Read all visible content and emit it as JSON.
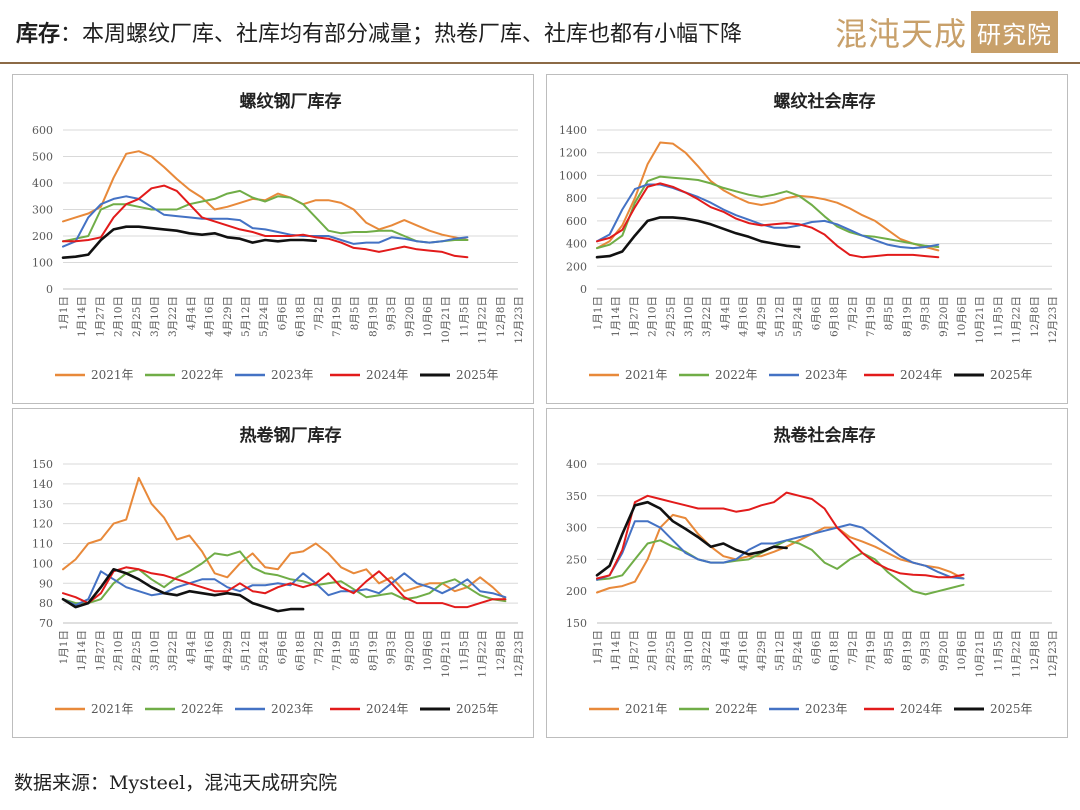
{
  "header": {
    "title_bold": "库存",
    "title_rest": "：本周螺纹厂库、社库均有部分减量；热卷厂库、社库也都有小幅下降",
    "logo_text": "混沌天成",
    "logo_box_text": "研究院"
  },
  "source": "数据来源：Mysteel，混沌天成研究院",
  "colors": {
    "2021年": "#e8893a",
    "2022年": "#70ad47",
    "2023年": "#4472c4",
    "2024年": "#e21b1b",
    "2025年": "#111111",
    "accent": "#8c6a46"
  },
  "chart_data": [
    {
      "type": "line",
      "title": "螺纹钢厂库存",
      "ylim": [
        0,
        600
      ],
      "yticks": [
        0,
        100,
        200,
        300,
        400,
        500,
        600
      ],
      "xticks": [
        "1月1日",
        "1月14日",
        "1月27日",
        "2月10日",
        "2月25日",
        "3月10日",
        "3月22日",
        "4月4日",
        "4月16日",
        "4月29日",
        "5月12日",
        "5月24日",
        "6月6日",
        "6月18日",
        "7月2日",
        "7月19日",
        "8月5日",
        "8月19日",
        "9月3日",
        "9月20日",
        "10月6日",
        "10月21日",
        "11月5日",
        "11月22日",
        "12月8日",
        "12月23日"
      ],
      "legend": "bottom",
      "series": [
        {
          "name": "2021年",
          "values": [
            255,
            270,
            285,
            310,
            420,
            510,
            520,
            500,
            460,
            415,
            375,
            345,
            300,
            310,
            325,
            340,
            335,
            360,
            345,
            320,
            335,
            335,
            325,
            300,
            250,
            225,
            240,
            260,
            240,
            220,
            205,
            195,
            185
          ]
        },
        {
          "name": "2022年",
          "values": [
            180,
            190,
            200,
            300,
            320,
            320,
            310,
            300,
            300,
            300,
            320,
            330,
            340,
            360,
            370,
            345,
            330,
            350,
            345,
            320,
            270,
            220,
            210,
            215,
            215,
            220,
            220,
            200,
            180,
            175,
            180,
            185,
            185
          ]
        },
        {
          "name": "2023年",
          "values": [
            160,
            180,
            270,
            320,
            340,
            350,
            340,
            310,
            280,
            275,
            270,
            265,
            265,
            265,
            260,
            230,
            225,
            215,
            205,
            200,
            200,
            200,
            185,
            170,
            175,
            175,
            195,
            190,
            180,
            175,
            180,
            190,
            195
          ]
        },
        {
          "name": "2024年",
          "values": [
            180,
            180,
            185,
            195,
            270,
            320,
            340,
            380,
            390,
            370,
            320,
            270,
            255,
            240,
            225,
            215,
            200,
            200,
            200,
            205,
            195,
            190,
            175,
            155,
            150,
            140,
            150,
            160,
            150,
            145,
            140,
            125,
            120
          ]
        },
        {
          "name": "2025年",
          "values": [
            118,
            122,
            130,
            185,
            225,
            235,
            235,
            230,
            225,
            220,
            210,
            205,
            210,
            195,
            190,
            175,
            185,
            180,
            185,
            185,
            182
          ]
        }
      ]
    },
    {
      "type": "line",
      "title": "螺纹社会库存",
      "ylim": [
        0,
        1400
      ],
      "yticks": [
        0,
        200,
        400,
        600,
        800,
        1000,
        1200,
        1400
      ],
      "xticks": [
        "1月1日",
        "1月14日",
        "1月27日",
        "2月10日",
        "2月25日",
        "3月10日",
        "3月22日",
        "4月4日",
        "4月16日",
        "4月29日",
        "5月12日",
        "5月24日",
        "6月6日",
        "6月18日",
        "7月2日",
        "7月19日",
        "8月5日",
        "8月19日",
        "9月3日",
        "9月20日",
        "10月6日",
        "10月21日",
        "11月5日",
        "11月22日",
        "12月8日",
        "12月23日"
      ],
      "legend": "bottom",
      "series": [
        {
          "name": "2021年",
          "values": [
            360,
            420,
            560,
            800,
            1100,
            1290,
            1280,
            1200,
            1080,
            950,
            870,
            810,
            760,
            740,
            760,
            800,
            820,
            810,
            790,
            760,
            710,
            650,
            600,
            520,
            440,
            400,
            370,
            340
          ]
        },
        {
          "name": "2022年",
          "values": [
            360,
            390,
            470,
            760,
            950,
            990,
            980,
            970,
            960,
            930,
            890,
            860,
            830,
            810,
            830,
            860,
            820,
            740,
            640,
            550,
            500,
            470,
            460,
            440,
            420,
            400,
            380,
            370
          ]
        },
        {
          "name": "2023年",
          "values": [
            420,
            480,
            700,
            880,
            920,
            920,
            890,
            850,
            810,
            760,
            700,
            650,
            610,
            570,
            540,
            540,
            560,
            590,
            600,
            570,
            520,
            470,
            430,
            390,
            370,
            360,
            370,
            390
          ]
        },
        {
          "name": "2024年",
          "values": [
            420,
            450,
            520,
            720,
            900,
            930,
            900,
            850,
            790,
            720,
            680,
            620,
            580,
            560,
            570,
            580,
            570,
            540,
            480,
            380,
            300,
            280,
            290,
            300,
            300,
            300,
            290,
            280
          ]
        },
        {
          "name": "2025年",
          "values": [
            280,
            290,
            330,
            470,
            600,
            630,
            630,
            620,
            600,
            570,
            530,
            490,
            460,
            420,
            400,
            380,
            370
          ]
        }
      ]
    },
    {
      "type": "line",
      "title": "热卷钢厂库存",
      "ylim": [
        70,
        150
      ],
      "yticks": [
        70,
        80,
        90,
        100,
        110,
        120,
        130,
        140,
        150
      ],
      "xticks": [
        "1月1日",
        "1月14日",
        "1月27日",
        "2月10日",
        "2月25日",
        "3月10日",
        "3月22日",
        "4月4日",
        "4月16日",
        "4月29日",
        "5月12日",
        "5月24日",
        "6月6日",
        "6月18日",
        "7月2日",
        "7月19日",
        "8月5日",
        "8月19日",
        "9月3日",
        "9月20日",
        "10月6日",
        "10月21日",
        "11月5日",
        "11月22日",
        "12月8日",
        "12月23日"
      ],
      "legend": "bottom",
      "series": [
        {
          "name": "2021年",
          "values": [
            97,
            102,
            110,
            112,
            120,
            122,
            143,
            130,
            123,
            112,
            114,
            106,
            95,
            93,
            100,
            105,
            98,
            97,
            105,
            106,
            110,
            105,
            98,
            95,
            97,
            90,
            93,
            86,
            88,
            90,
            90,
            86,
            88,
            93,
            88,
            82
          ]
        },
        {
          "name": "2022年",
          "values": [
            82,
            80,
            80,
            82,
            90,
            95,
            97,
            92,
            88,
            93,
            96,
            100,
            105,
            104,
            106,
            98,
            95,
            94,
            92,
            91,
            89,
            90,
            91,
            87,
            83,
            84,
            85,
            82,
            83,
            85,
            90,
            92,
            88,
            84,
            82,
            81
          ]
        },
        {
          "name": "2023年",
          "values": [
            82,
            79,
            82,
            96,
            92,
            88,
            86,
            84,
            85,
            88,
            90,
            92,
            92,
            88,
            86,
            89,
            89,
            90,
            89,
            95,
            90,
            84,
            86,
            86,
            87,
            85,
            90,
            95,
            90,
            88,
            85,
            88,
            92,
            86,
            85,
            83
          ]
        },
        {
          "name": "2024年",
          "values": [
            85,
            83,
            80,
            85,
            96,
            98,
            97,
            95,
            94,
            92,
            90,
            88,
            86,
            86,
            90,
            86,
            85,
            88,
            90,
            88,
            90,
            95,
            88,
            85,
            91,
            96,
            90,
            83,
            80,
            80,
            80,
            78,
            78,
            80,
            82,
            82
          ]
        },
        {
          "name": "2025年",
          "values": [
            82,
            78,
            80,
            88,
            97,
            95,
            92,
            88,
            85,
            84,
            86,
            85,
            84,
            85,
            84,
            80,
            78,
            76,
            77,
            77
          ]
        }
      ]
    },
    {
      "type": "line",
      "title": "热卷社会库存",
      "ylim": [
        150,
        400
      ],
      "yticks": [
        150,
        200,
        250,
        300,
        350,
        400
      ],
      "xticks": [
        "1月1日",
        "1月14日",
        "1月27日",
        "2月10日",
        "2月25日",
        "3月10日",
        "3月22日",
        "4月4日",
        "4月16日",
        "4月29日",
        "5月12日",
        "5月24日",
        "6月6日",
        "6月18日",
        "7月2日",
        "7月19日",
        "8月5日",
        "8月19日",
        "9月3日",
        "9月20日",
        "10月6日",
        "10月21日",
        "11月5日",
        "11月22日",
        "12月8日",
        "12月23日"
      ],
      "legend": "bottom",
      "series": [
        {
          "name": "2021年",
          "values": [
            198,
            205,
            208,
            215,
            250,
            300,
            320,
            315,
            290,
            270,
            255,
            250,
            255,
            255,
            262,
            270,
            280,
            290,
            300,
            300,
            285,
            278,
            270,
            260,
            250,
            245,
            240,
            237,
            230,
            220
          ]
        },
        {
          "name": "2022年",
          "values": [
            218,
            220,
            225,
            250,
            275,
            280,
            270,
            262,
            250,
            245,
            245,
            248,
            250,
            260,
            270,
            280,
            275,
            265,
            245,
            235,
            250,
            260,
            250,
            230,
            215,
            200,
            195,
            200,
            205,
            210
          ]
        },
        {
          "name": "2023年",
          "values": [
            218,
            225,
            260,
            310,
            310,
            300,
            280,
            260,
            250,
            245,
            245,
            250,
            265,
            275,
            275,
            280,
            285,
            290,
            295,
            300,
            305,
            300,
            285,
            270,
            255,
            245,
            240,
            230,
            222,
            220
          ]
        },
        {
          "name": "2024年",
          "values": [
            220,
            225,
            265,
            340,
            350,
            345,
            340,
            335,
            330,
            330,
            330,
            325,
            328,
            335,
            340,
            355,
            350,
            345,
            330,
            300,
            280,
            260,
            245,
            235,
            228,
            226,
            225,
            222,
            222,
            226
          ]
        },
        {
          "name": "2025年",
          "values": [
            225,
            240,
            290,
            335,
            340,
            330,
            310,
            298,
            285,
            270,
            275,
            265,
            258,
            262,
            270,
            268
          ]
        }
      ]
    }
  ]
}
